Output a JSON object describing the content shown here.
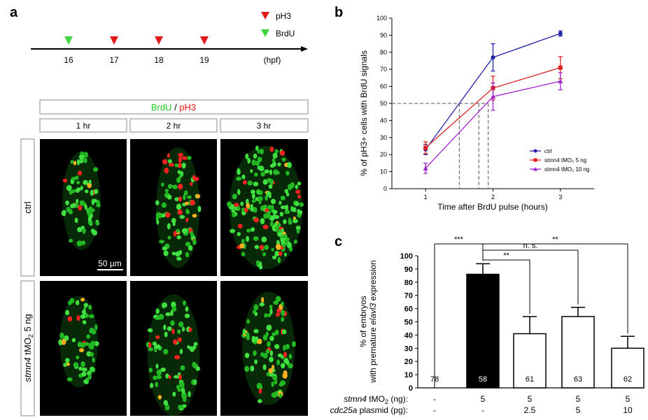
{
  "panels": {
    "a": {
      "letter": "a",
      "timeline": {
        "ticks": [
          "16",
          "17",
          "18",
          "19"
        ],
        "unit_label": "(hpf)",
        "markers": [
          {
            "tick": "16",
            "kind": "BrdU"
          },
          {
            "tick": "17",
            "kind": "pH3"
          },
          {
            "tick": "18",
            "kind": "pH3"
          },
          {
            "tick": "19",
            "kind": "pH3"
          }
        ],
        "legend": [
          {
            "label": "pH3",
            "color": "#e01a1a"
          },
          {
            "label": "BrdU",
            "color": "#3ed63e"
          }
        ]
      },
      "header": {
        "brdu": "BrdU",
        "slash": " / ",
        "ph3": "pH3",
        "brdu_color": "#22cc22",
        "ph3_color": "#ee1111"
      },
      "columns": [
        "1 hr",
        "2 hr",
        "3 hr"
      ],
      "rows": [
        {
          "label": "ctrl"
        },
        {
          "label_gene": "stmn4",
          "label_rest": " tMO",
          "label_sub": "2",
          "label_tail": " 5 ng"
        }
      ],
      "scale_bar": "50 µm"
    },
    "b": {
      "letter": "b",
      "chart_data": {
        "type": "line",
        "xlabel": "Time after BrdU pulse (hours)",
        "ylabel": "% of pH3+ cells with BrdU signals",
        "x": [
          1,
          2,
          3
        ],
        "xlim": [
          0.5,
          3.5
        ],
        "ylim": [
          0,
          100
        ],
        "yticks": [
          0,
          10,
          20,
          30,
          40,
          50,
          60,
          70,
          80,
          90,
          100
        ],
        "xticks": [
          1,
          2,
          3
        ],
        "legend_position": "lower-right",
        "reference": {
          "y": 50,
          "x_crossings": [
            1.5,
            1.79,
            1.93
          ]
        },
        "series": [
          {
            "name": "ctrl",
            "values": [
              23,
              77,
              91
            ],
            "errors": [
              3,
              8,
              1.5
            ],
            "color": "#1f1fa8",
            "marker": "circle"
          },
          {
            "name": "stmn4 tMO₂ 5 ng",
            "values": [
              24,
              59,
              71
            ],
            "errors": [
              3.5,
              7,
              6.5
            ],
            "color": "#e02020",
            "marker": "square"
          },
          {
            "name": "stmn4 tMO₂ 10 ng",
            "values": [
              12,
              54,
              63
            ],
            "errors": [
              3,
              8,
              5
            ],
            "color": "#a020d0",
            "marker": "triangle"
          }
        ]
      }
    },
    "c": {
      "letter": "c",
      "chart_data": {
        "type": "bar",
        "ylabel_line1": "% of embryos",
        "ylabel_line2_pre": "with premature ",
        "ylabel_line2_gene": "elavl3",
        "ylabel_line2_post": " expression",
        "ylim": [
          0,
          100
        ],
        "yticks": [
          0,
          10,
          20,
          30,
          40,
          50,
          60,
          70,
          80,
          90,
          100
        ],
        "categories": [
          "1",
          "2",
          "3",
          "4",
          "5"
        ],
        "values": [
          0,
          86,
          41,
          54,
          30
        ],
        "errors": [
          0,
          8,
          13,
          7,
          9
        ],
        "counts": [
          "78",
          "58",
          "61",
          "63",
          "62"
        ],
        "fills": [
          "#ffffff",
          "#000000",
          "#ffffff",
          "#ffffff",
          "#ffffff"
        ],
        "row_labels": [
          {
            "gene": "stmn4",
            "rest": " tMO",
            "sub": "2",
            "tail": " (ng):",
            "values": [
              "-",
              "5",
              "5",
              "5",
              "5"
            ]
          },
          {
            "gene": "cdc25a",
            "rest": " plasmid (pg):",
            "sub": "",
            "tail": "",
            "values": [
              "-",
              "-",
              "2.5",
              "5",
              "10"
            ]
          }
        ],
        "significance": [
          {
            "from": 2,
            "to": 1,
            "label": "***",
            "level": 1
          },
          {
            "from": 2,
            "to": 5,
            "label": "**",
            "level": 1
          },
          {
            "from": 2,
            "to": 4,
            "label": "n. s.",
            "level": 2
          },
          {
            "from": 2,
            "to": 3,
            "label": "**",
            "level": 3
          }
        ]
      }
    }
  }
}
